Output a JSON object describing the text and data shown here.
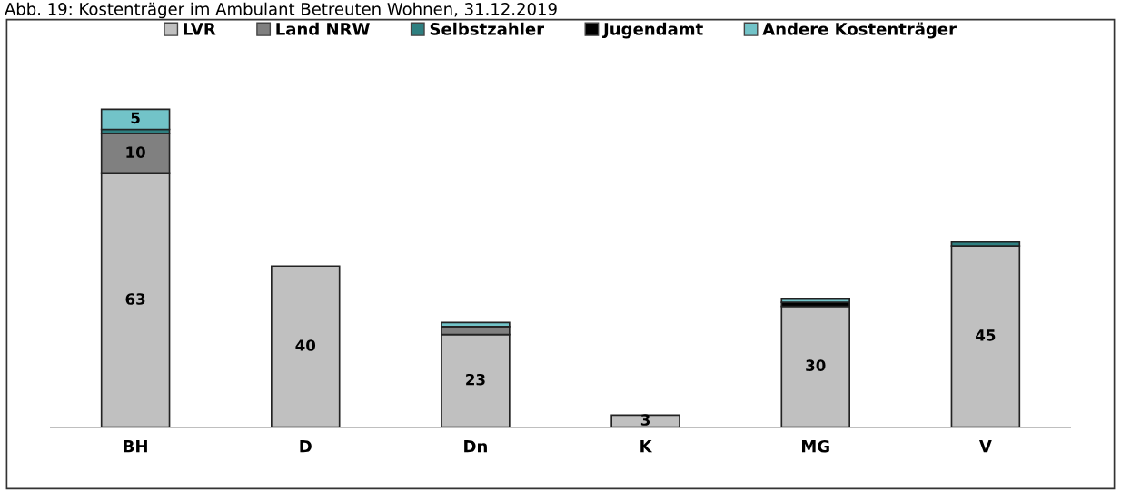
{
  "chart_data": {
    "type": "bar",
    "stacked": true,
    "title": "Abb. 19: Kostenträger im Ambulant Betreuten Wohnen, 31.12.2019",
    "categories": [
      "BH",
      "D",
      "Dn",
      "K",
      "MG",
      "V"
    ],
    "series": [
      {
        "name": "LVR",
        "color": "#c0c0c0",
        "values": [
          63,
          40,
          23,
          3,
          30,
          45
        ],
        "value_labels": [
          "63",
          "40",
          "23",
          "3",
          "30",
          "45"
        ]
      },
      {
        "name": "Land NRW",
        "color": "#808080",
        "values": [
          10,
          null,
          2,
          null,
          null,
          null
        ],
        "value_labels": [
          "10",
          null,
          null,
          null,
          null,
          null
        ]
      },
      {
        "name": "Selbstzahler",
        "color": "#2e7f80",
        "values": [
          1,
          null,
          null,
          null,
          null,
          1
        ]
      },
      {
        "name": "Jugendamt",
        "color": "#000000",
        "values": [
          null,
          null,
          null,
          null,
          1,
          null
        ]
      },
      {
        "name": "Andere Kostenträger",
        "color": "#72c3c8",
        "values": [
          5,
          null,
          1,
          null,
          1,
          null
        ],
        "value_labels": [
          "5",
          null,
          null,
          null,
          null,
          null
        ]
      }
    ],
    "legend": "top",
    "grid": false
  }
}
